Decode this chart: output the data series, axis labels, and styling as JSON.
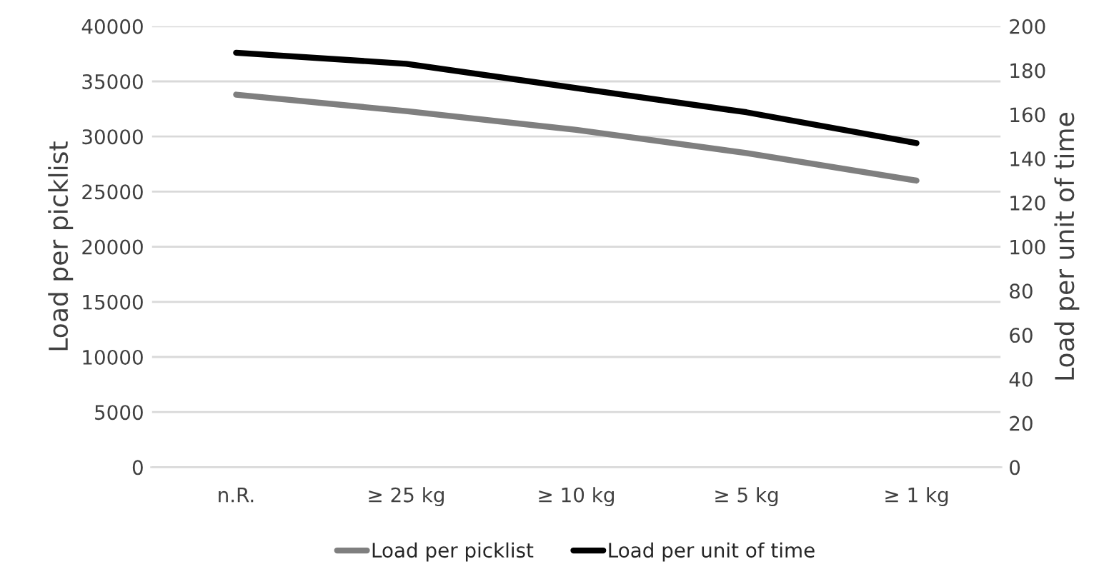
{
  "chart_data": {
    "type": "line",
    "ylabel": "Load per picklist",
    "y2label": "Load per unit of time",
    "categories": [
      "n.R.",
      "≥ 25 kg",
      "≥ 10 kg",
      "≥ 5 kg",
      "≥ 1 kg"
    ],
    "series": [
      {
        "name": "Load per picklist",
        "color": "#7f7f7f",
        "values": [
          33800,
          32300,
          30600,
          28500,
          26000
        ]
      },
      {
        "name": "Load per unit of time",
        "color": "#000000",
        "axis": "y2",
        "values": [
          188,
          183,
          172,
          161,
          147
        ]
      }
    ],
    "ylim": [
      0,
      40000
    ],
    "yticks": [
      0,
      5000,
      10000,
      15000,
      20000,
      25000,
      30000,
      35000,
      40000
    ],
    "y2lim": [
      0,
      200
    ],
    "y2ticks": [
      0,
      20,
      40,
      60,
      80,
      100,
      120,
      140,
      160,
      180,
      200
    ],
    "grid": "y",
    "legend": "bottom",
    "marker": "none",
    "line_style": "solid"
  }
}
